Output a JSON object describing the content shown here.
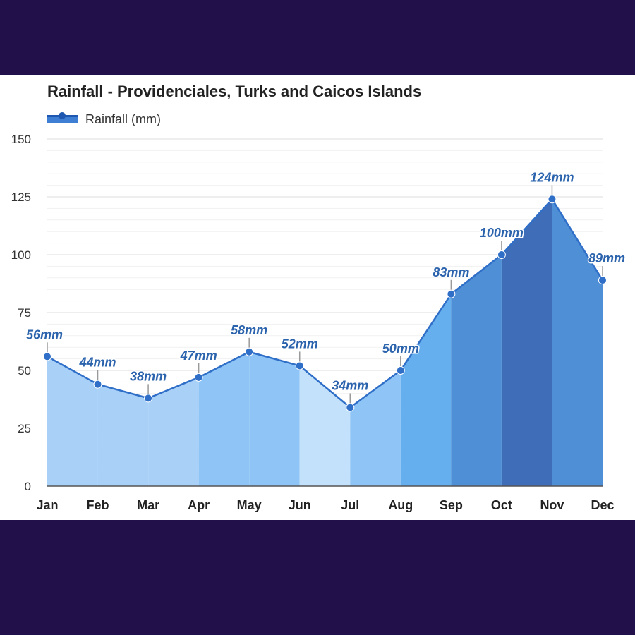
{
  "chart_data": {
    "type": "area",
    "title": "Rainfall - Providenciales, Turks and Caicos Islands",
    "categories": [
      "Jan",
      "Feb",
      "Mar",
      "Apr",
      "May",
      "Jun",
      "Jul",
      "Aug",
      "Sep",
      "Oct",
      "Nov",
      "Dec"
    ],
    "series": [
      {
        "name": "Rainfall (mm)",
        "values": [
          56,
          44,
          38,
          47,
          58,
          52,
          34,
          50,
          83,
          100,
          124,
          89
        ]
      }
    ],
    "data_labels": [
      "56mm",
      "44mm",
      "38mm",
      "47mm",
      "58mm",
      "52mm",
      "34mm",
      "50mm",
      "83mm",
      "100mm",
      "124mm",
      "89mm"
    ],
    "y_ticks": [
      "0",
      "25",
      "50",
      "75",
      "100",
      "125",
      "150"
    ],
    "ylim": [
      0,
      150
    ],
    "xlabel": "",
    "ylabel": "",
    "grid": true,
    "legend_position": "top-left",
    "colors": {
      "line": "#2f6fc8",
      "label": "#2b63ad",
      "band_fills": [
        "#a9d1f8",
        "#a9d1f8",
        "#a9d1f8",
        "#8ec5f6",
        "#8ec5f6",
        "#c4e1fb",
        "#8ec5f6",
        "#66afee",
        "#4f8fd6",
        "#3f6db8",
        "#4f8fd6"
      ]
    }
  }
}
